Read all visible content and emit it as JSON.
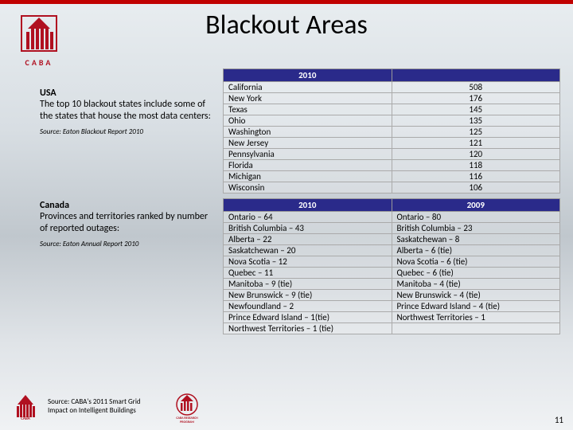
{
  "title": "Blackout Areas",
  "logo_text": "CABA",
  "usa": {
    "heading": "USA",
    "body": "The top 10 blackout states include some of the states that house the most data centers:",
    "source": "Source: Eaton Blackout Report 2010",
    "year": "2010",
    "rows": [
      {
        "state": "California",
        "val": "508"
      },
      {
        "state": "New York",
        "val": "176"
      },
      {
        "state": "Texas",
        "val": "145"
      },
      {
        "state": "Ohio",
        "val": "135"
      },
      {
        "state": "Washington",
        "val": "125"
      },
      {
        "state": "New Jersey",
        "val": "121"
      },
      {
        "state": "Pennsylvania",
        "val": "120"
      },
      {
        "state": "Florida",
        "val": "118"
      },
      {
        "state": "Michigan",
        "val": "116"
      },
      {
        "state": "Wisconsin",
        "val": "106"
      }
    ]
  },
  "canada": {
    "heading": "Canada",
    "body": "Provinces and territories ranked by number of reported outages:",
    "source": "Source: Eaton Annual Report 2010",
    "year_a": "2010",
    "year_b": "2009",
    "rows": [
      {
        "a": "Ontario – 64",
        "b": "Ontario – 80"
      },
      {
        "a": "British Columbia – 43",
        "b": "British Columbia – 23"
      },
      {
        "a": "Alberta – 22",
        "b": "Saskatchewan – 8"
      },
      {
        "a": "Saskatchewan – 20",
        "b": "Alberta – 6 (tie)"
      },
      {
        "a": "Nova Scotia – 12",
        "b": "Nova Scotia – 6 (tie)"
      },
      {
        "a": "Quebec – 11",
        "b": "Quebec – 6 (tie)"
      },
      {
        "a": "Manitoba – 9 (tie)",
        "b": "Manitoba – 4 (tie)"
      },
      {
        "a": "New Brunswick – 9 (tie)",
        "b": "New Brunswick – 4 (tie)"
      },
      {
        "a": "Newfoundland – 2",
        "b": "Prince Edward Island – 4 (tie)"
      },
      {
        "a": "Prince Edward Island – 1(tie)",
        "b": "Northwest Territories – 1"
      },
      {
        "a": "Northwest Territories – 1 (tie)",
        "b": ""
      }
    ]
  },
  "footer": {
    "source": "Source: CABA's 2011 Smart Grid Impact on Intelligent Buildings"
  },
  "page_number": "11",
  "colors": {
    "accent_red": "#c00000",
    "table_header": "#2a2a8a",
    "caba_red": "#b01020"
  }
}
